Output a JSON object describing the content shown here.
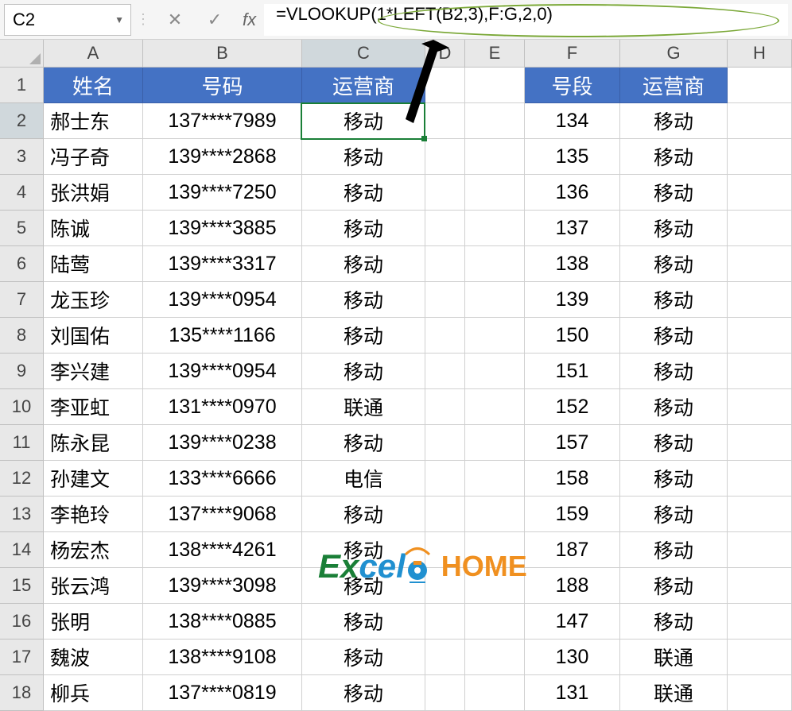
{
  "formula_bar": {
    "cell_ref": "C2",
    "formula": "=VLOOKUP(1*LEFT(B2,3),F:G,2,0)",
    "fx_label": "fx",
    "cancel_icon": "✕",
    "confirm_icon": "✓"
  },
  "columns": [
    "A",
    "B",
    "C",
    "D",
    "E",
    "F",
    "G",
    "H"
  ],
  "col_widths": {
    "A": 125,
    "B": 200,
    "C": 155,
    "D": 50,
    "E": 75,
    "F": 120,
    "G": 135,
    "H": 81
  },
  "header_row": {
    "A": "姓名",
    "B": "号码",
    "C": "运营商",
    "F": "号段",
    "G": "运营商"
  },
  "main_table": [
    {
      "row": 2,
      "name": "郝士东",
      "phone": "137****7989",
      "carrier": "移动"
    },
    {
      "row": 3,
      "name": "冯子奇",
      "phone": "139****2868",
      "carrier": "移动"
    },
    {
      "row": 4,
      "name": "张洪娟",
      "phone": "139****7250",
      "carrier": "移动"
    },
    {
      "row": 5,
      "name": "陈诚",
      "phone": "139****3885",
      "carrier": "移动"
    },
    {
      "row": 6,
      "name": "陆莺",
      "phone": "139****3317",
      "carrier": "移动"
    },
    {
      "row": 7,
      "name": "龙玉珍",
      "phone": "139****0954",
      "carrier": "移动"
    },
    {
      "row": 8,
      "name": "刘国佑",
      "phone": "135****1166",
      "carrier": "移动"
    },
    {
      "row": 9,
      "name": "李兴建",
      "phone": "139****0954",
      "carrier": "移动"
    },
    {
      "row": 10,
      "name": "李亚虹",
      "phone": "131****0970",
      "carrier": "联通"
    },
    {
      "row": 11,
      "name": "陈永昆",
      "phone": "139****0238",
      "carrier": "移动"
    },
    {
      "row": 12,
      "name": "孙建文",
      "phone": "133****6666",
      "carrier": "电信"
    },
    {
      "row": 13,
      "name": "李艳玲",
      "phone": "137****9068",
      "carrier": "移动"
    },
    {
      "row": 14,
      "name": "杨宏杰",
      "phone": "138****4261",
      "carrier": "移动"
    },
    {
      "row": 15,
      "name": "张云鸿",
      "phone": "139****3098",
      "carrier": "移动"
    },
    {
      "row": 16,
      "name": "张明",
      "phone": "138****0885",
      "carrier": "移动"
    },
    {
      "row": 17,
      "name": "魏波",
      "phone": "138****9108",
      "carrier": "移动"
    },
    {
      "row": 18,
      "name": "柳兵",
      "phone": "137****0819",
      "carrier": "移动"
    }
  ],
  "lookup_table": [
    {
      "prefix": "134",
      "carrier": "移动"
    },
    {
      "prefix": "135",
      "carrier": "移动"
    },
    {
      "prefix": "136",
      "carrier": "移动"
    },
    {
      "prefix": "137",
      "carrier": "移动"
    },
    {
      "prefix": "138",
      "carrier": "移动"
    },
    {
      "prefix": "139",
      "carrier": "移动"
    },
    {
      "prefix": "150",
      "carrier": "移动"
    },
    {
      "prefix": "151",
      "carrier": "移动"
    },
    {
      "prefix": "152",
      "carrier": "移动"
    },
    {
      "prefix": "157",
      "carrier": "移动"
    },
    {
      "prefix": "158",
      "carrier": "移动"
    },
    {
      "prefix": "159",
      "carrier": "移动"
    },
    {
      "prefix": "187",
      "carrier": "移动"
    },
    {
      "prefix": "188",
      "carrier": "移动"
    },
    {
      "prefix": "147",
      "carrier": "移动"
    },
    {
      "prefix": "130",
      "carrier": "联通"
    },
    {
      "prefix": "131",
      "carrier": "联通"
    }
  ],
  "selected_cell": "C2",
  "selected_row": 2,
  "colors": {
    "header_bg": "#4472c4",
    "header_text": "#ffffff",
    "selection_border": "#1a7f37",
    "ellipse_border": "#7ba838",
    "grid_border": "#d0d0d0",
    "row_header_bg": "#e8e8e8"
  },
  "watermark": {
    "text_ex": "Ex",
    "text_cel": "cel",
    "text_home": "HOME"
  }
}
